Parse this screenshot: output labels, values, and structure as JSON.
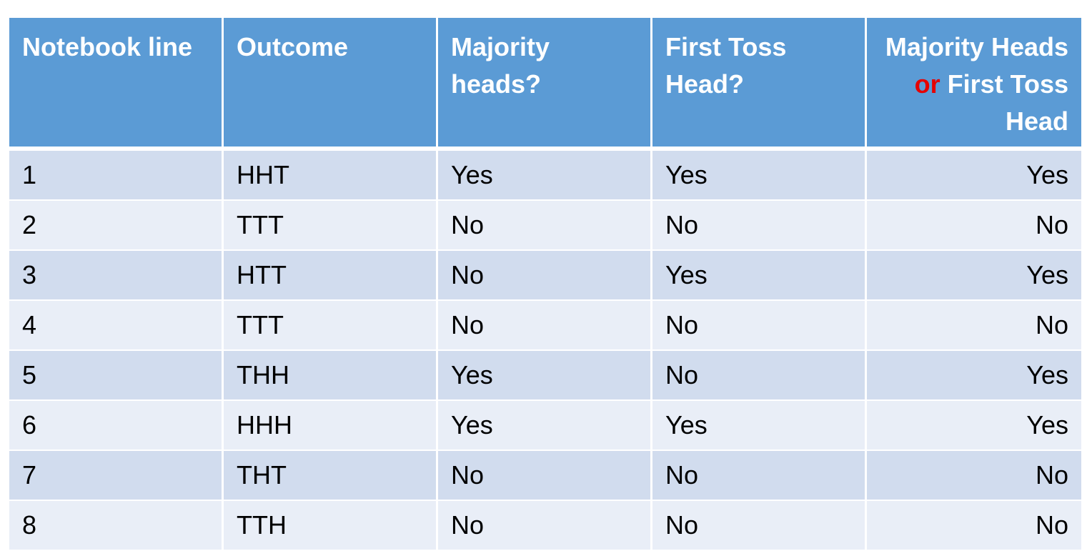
{
  "table": {
    "headers": {
      "notebook_line": "Notebook line",
      "outcome": "Outcome",
      "majority_heads": "Majority heads?",
      "first_toss_head": "First Toss Head?",
      "combined_pre": "Majority Heads ",
      "combined_or": "or",
      "combined_post": " First Toss Head"
    },
    "rows": [
      {
        "line": "1",
        "outcome": "HHT",
        "majority": "Yes",
        "first": "Yes",
        "either": "Yes"
      },
      {
        "line": "2",
        "outcome": "TTT",
        "majority": "No",
        "first": "No",
        "either": "No"
      },
      {
        "line": "3",
        "outcome": "HTT",
        "majority": "No",
        "first": "Yes",
        "either": "Yes"
      },
      {
        "line": "4",
        "outcome": "TTT",
        "majority": "No",
        "first": "No",
        "either": "No"
      },
      {
        "line": "5",
        "outcome": "THH",
        "majority": "Yes",
        "first": "No",
        "either": "Yes"
      },
      {
        "line": "6",
        "outcome": "HHH",
        "majority": "Yes",
        "first": "Yes",
        "either": "Yes"
      },
      {
        "line": "7",
        "outcome": "THT",
        "majority": "No",
        "first": "No",
        "either": "No"
      },
      {
        "line": "8",
        "outcome": "TTH",
        "majority": "No",
        "first": "No",
        "either": "No"
      }
    ]
  },
  "colors": {
    "header_bg": "#5b9bd5",
    "row_dark": "#d1dcee",
    "row_light": "#e9eef7",
    "or_highlight": "#e60000"
  }
}
